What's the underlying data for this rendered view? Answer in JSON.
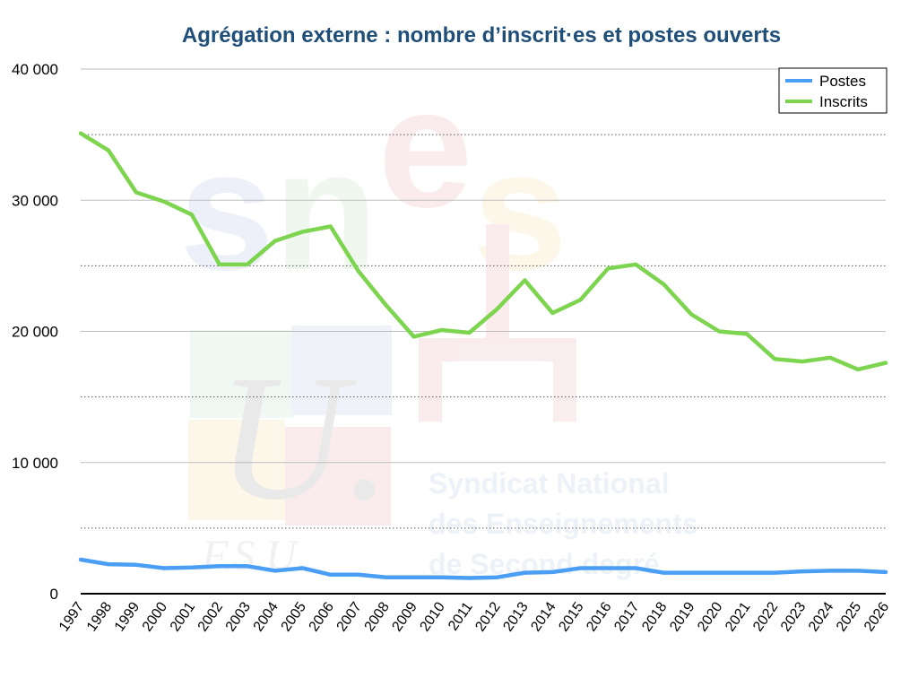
{
  "chart_data": {
    "type": "line",
    "title": "Agrégation externe : nombre d’inscrit·es et postes ouverts",
    "xlabel": "",
    "ylabel": "",
    "x": [
      "1997",
      "1998",
      "1999",
      "2000",
      "2001",
      "2002",
      "2003",
      "2004",
      "2005",
      "2006",
      "2007",
      "2008",
      "2009",
      "2010",
      "2011",
      "2012",
      "2013",
      "2014",
      "2015",
      "2016",
      "2017",
      "2018",
      "2019",
      "2020",
      "2021",
      "2022",
      "2023",
      "2024",
      "2025",
      "2026"
    ],
    "ylim": [
      0,
      40000
    ],
    "yticks": [
      0,
      10000,
      20000,
      30000,
      40000
    ],
    "ytick_labels": [
      "0",
      "10 000",
      "20 000",
      "30 000",
      "40 000"
    ],
    "minor_gridlines": [
      5000,
      15000,
      25000,
      35000
    ],
    "grid": true,
    "legend_position": "top-right",
    "series": [
      {
        "name": "Postes",
        "color": "#4a9ff5",
        "values": [
          2600,
          2250,
          2200,
          1950,
          2000,
          2100,
          2100,
          1750,
          1950,
          1450,
          1450,
          1250,
          1250,
          1250,
          1200,
          1250,
          1600,
          1650,
          1950,
          1950,
          1950,
          1600,
          1600,
          1600,
          1600,
          1600,
          1700,
          1750,
          1750,
          1650
        ]
      },
      {
        "name": "Inscrits",
        "color": "#7dd44f",
        "values": [
          35100,
          33800,
          30600,
          29900,
          28900,
          25100,
          25100,
          26900,
          27600,
          28000,
          24600,
          22000,
          19600,
          20100,
          19900,
          21700,
          23900,
          21400,
          22400,
          24800,
          25100,
          23600,
          21300,
          20000,
          19800,
          17900,
          17700,
          18000,
          17100,
          17600
        ]
      }
    ]
  },
  "watermark": {
    "logo_text": "snes",
    "fsu_text": "F.S.U.",
    "u_letter": "U.",
    "org_lines": [
      "Syndicat National",
      "des Enseignements",
      "de Second degré"
    ]
  }
}
